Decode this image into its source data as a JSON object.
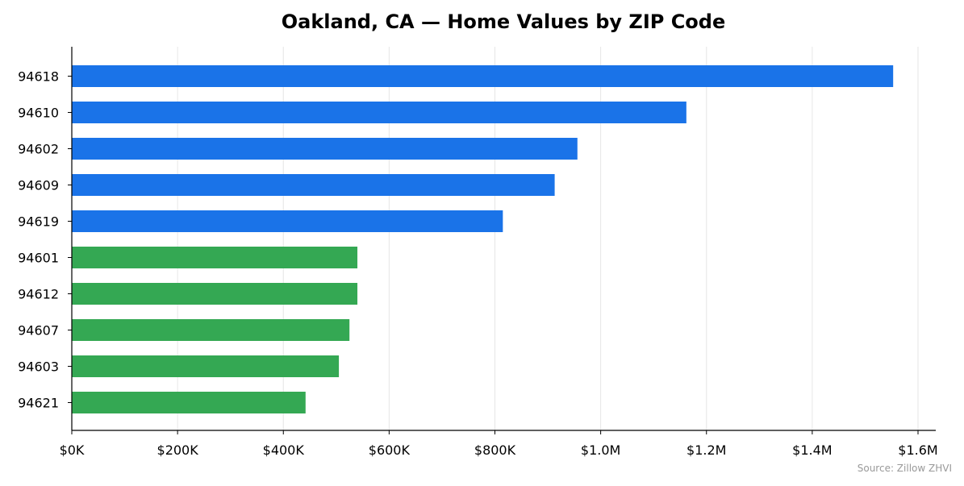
{
  "chart_data": {
    "type": "bar",
    "orientation": "horizontal",
    "title": "Oakland, CA — Home Values by ZIP Code",
    "xlabel": "",
    "ylabel": "",
    "categories": [
      "94618",
      "94610",
      "94602",
      "94609",
      "94619",
      "94601",
      "94612",
      "94607",
      "94603",
      "94621"
    ],
    "values": [
      1553000,
      1162000,
      956000,
      913000,
      815000,
      540000,
      540000,
      525000,
      505000,
      442000
    ],
    "bar_colors": [
      "#1a73e8",
      "#1a73e8",
      "#1a73e8",
      "#1a73e8",
      "#1a73e8",
      "#34a853",
      "#34a853",
      "#34a853",
      "#34a853",
      "#34a853"
    ],
    "xlim": [
      0,
      1630000
    ],
    "x_ticks": [
      0,
      200000,
      400000,
      600000,
      800000,
      1000000,
      1200000,
      1400000,
      1600000
    ],
    "x_tick_labels": [
      "$0K",
      "$200K",
      "$400K",
      "$600K",
      "$800K",
      "$1.0M",
      "$1.2M",
      "$1.4M",
      "$1.6M"
    ],
    "grid": "vertical",
    "source_note": "Source: Zillow ZHVI"
  }
}
